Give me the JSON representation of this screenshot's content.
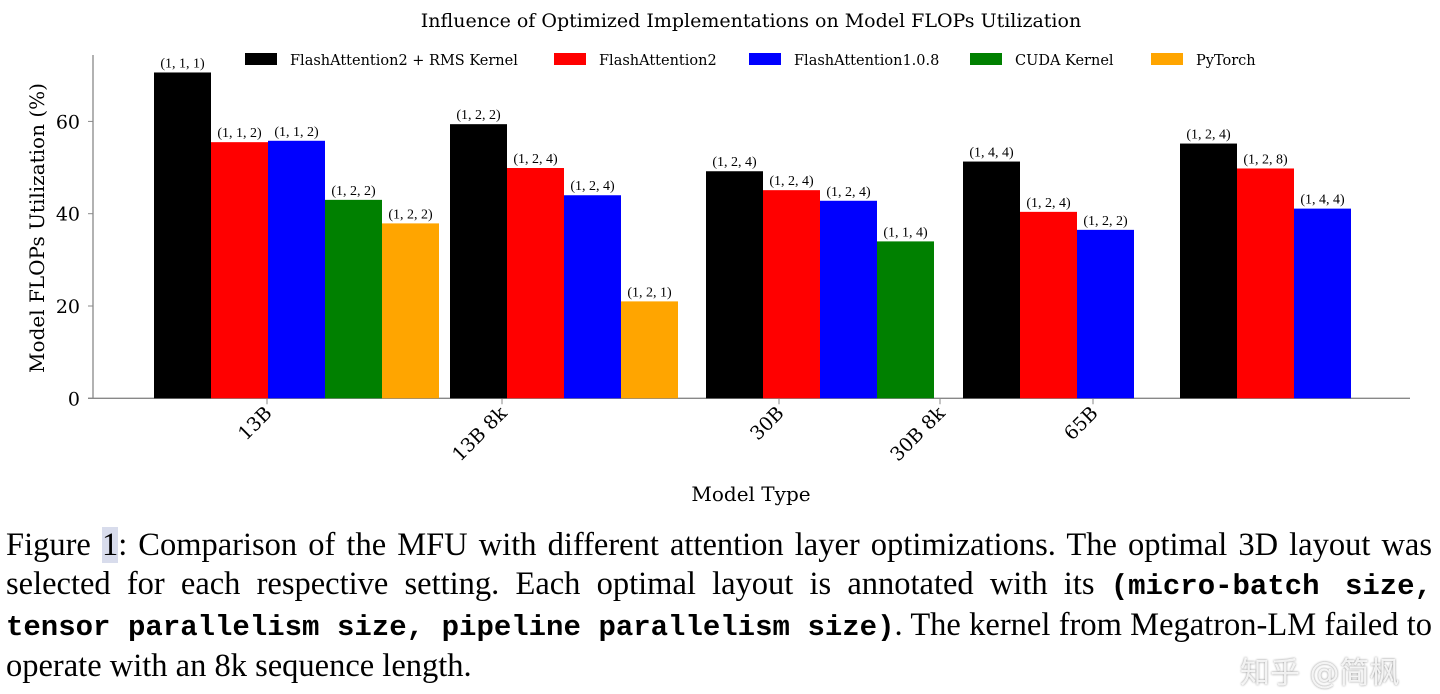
{
  "chart_data": {
    "type": "bar",
    "title": "Influence of Optimized Implementations on Model FLOPs Utilization",
    "xlabel": "Model Type",
    "ylabel": "Model FLOPs Utilization (%)",
    "ylim": [
      0,
      74
    ],
    "yticks": [
      0,
      20,
      40,
      60
    ],
    "grid": false,
    "legend_position": "top",
    "categories": [
      "13B",
      "13B 8k",
      "30B",
      "30B 8k",
      "65B"
    ],
    "series": [
      {
        "name": "FlashAttention2 + RMS Kernel",
        "color": "#000000",
        "values": [
          70.6,
          59.4,
          49.2,
          51.3,
          55.2
        ],
        "labels": [
          "(1, 1, 1)",
          "(1, 2, 2)",
          "(1, 2, 4)",
          "(1, 4, 4)",
          "(1, 2, 4)"
        ]
      },
      {
        "name": "FlashAttention2",
        "color": "#ff0000",
        "values": [
          55.5,
          49.9,
          45.1,
          40.4,
          49.8
        ],
        "labels": [
          "(1, 1, 2)",
          "(1, 2, 4)",
          "(1, 2, 4)",
          "(1, 2, 4)",
          "(1, 2, 8)"
        ]
      },
      {
        "name": "FlashAttention1.0.8",
        "color": "#0000ff",
        "values": [
          55.8,
          44.0,
          42.8,
          36.5,
          41.1
        ],
        "labels": [
          "(1, 1, 2)",
          "(1, 2, 4)",
          "(1, 2, 4)",
          "(1, 2, 2)",
          "(1, 4, 4)"
        ]
      },
      {
        "name": "CUDA Kernel",
        "color": "#008000",
        "values": [
          43.0,
          null,
          34.0,
          null,
          null
        ],
        "labels": [
          "(1, 2, 2)",
          null,
          "(1, 1, 4)",
          null,
          null
        ]
      },
      {
        "name": "PyTorch",
        "color": "#ffa500",
        "values": [
          37.9,
          21.0,
          null,
          null,
          null
        ],
        "labels": [
          "(1, 2, 2)",
          "(1, 2, 1)",
          null,
          null,
          null
        ]
      }
    ]
  },
  "caption": {
    "figure_label": "Figure ",
    "figure_ref": "1",
    "text1": ": Comparison of the MFU with different attention layer optimizations. The optimal 3D layout was selected for each respective setting. Each optimal layout is annotated with its ",
    "mono": "(micro-batch size, tensor parallelism size, pipeline parallelism size)",
    "text2": ". The kernel from Megatron-LM failed to operate with an 8k sequence length."
  },
  "watermark": "知乎 @简枫"
}
